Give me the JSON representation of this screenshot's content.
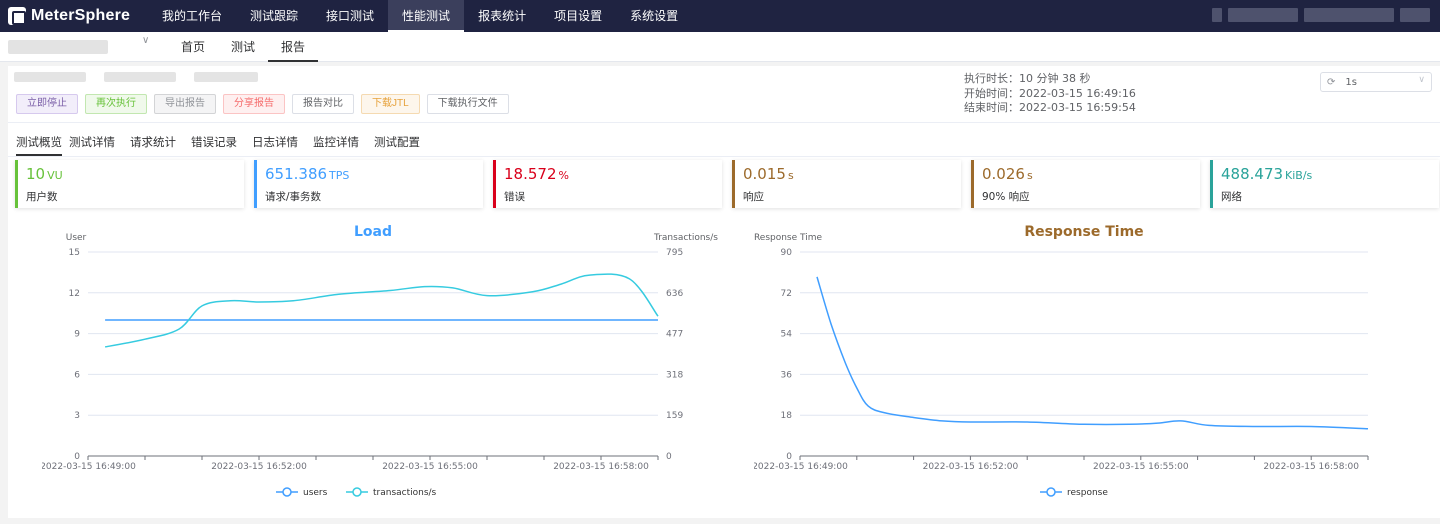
{
  "app": {
    "name": "MeterSphere"
  },
  "main_nav": [
    {
      "label": "我的工作台",
      "active": false
    },
    {
      "label": "测试跟踪",
      "active": false
    },
    {
      "label": "接口测试",
      "active": false
    },
    {
      "label": "性能测试",
      "active": true
    },
    {
      "label": "报表统计",
      "active": false
    },
    {
      "label": "项目设置",
      "active": false
    },
    {
      "label": "系统设置",
      "active": false
    }
  ],
  "sub_nav": [
    {
      "label": "首页",
      "active": false
    },
    {
      "label": "测试",
      "active": false
    },
    {
      "label": "报告",
      "active": true
    }
  ],
  "actions": {
    "stop": "立即停止",
    "rerun": "再次执行",
    "export": "导出报告",
    "share": "分享报告",
    "compare": "报告对比",
    "download_jtl": "下载JTL",
    "download_files": "下载执行文件"
  },
  "meta": {
    "duration_label": "执行时长：",
    "duration_value": "10 分钟 38 秒",
    "start_label": "开始时间：",
    "start_value": "2022-03-15 16:49:16",
    "end_label": "结束时间：",
    "end_value": "2022-03-15 16:59:54"
  },
  "interval": {
    "value": "1s"
  },
  "tabs": [
    {
      "label": "测试概览",
      "active": true
    },
    {
      "label": "测试详情",
      "active": false
    },
    {
      "label": "请求统计",
      "active": false
    },
    {
      "label": "错误记录",
      "active": false
    },
    {
      "label": "日志详情",
      "active": false
    },
    {
      "label": "监控详情",
      "active": false
    },
    {
      "label": "测试配置",
      "active": false
    }
  ],
  "stats": [
    {
      "value": "10",
      "unit": "VU",
      "label": "用户数",
      "color": "#67c23a"
    },
    {
      "value": "651.386",
      "unit": "TPS",
      "label": "请求/事务数",
      "color": "#409eff"
    },
    {
      "value": "18.572",
      "unit": "%",
      "label": "错误",
      "color": "#d9001b"
    },
    {
      "value": "0.015",
      "unit": "s",
      "label": "响应",
      "color": "#9c6a2b"
    },
    {
      "value": "0.026",
      "unit": "s",
      "label": "90% 响应",
      "color": "#9c6a2b"
    },
    {
      "value": "488.473",
      "unit": "KiB/s",
      "label": "网络",
      "color": "#2aa39a"
    }
  ],
  "chart_data": [
    {
      "type": "line",
      "title": "Load",
      "title_color": "#409eff",
      "ylabel_left": "User",
      "ylabel_right": "Transactions/s",
      "ylim_left": [
        0,
        15
      ],
      "yticks_left": [
        "0",
        "3",
        "6",
        "9",
        "12",
        "15"
      ],
      "ylim_right": [
        0,
        795
      ],
      "yticks_right": [
        "0",
        "159",
        "318",
        "477",
        "636",
        "795"
      ],
      "xlim_min": [
        0,
        10
      ],
      "xticks": [
        "2022-03-15 16:49:00",
        "2022-03-15 16:52:00",
        "2022-03-15 16:55:00",
        "2022-03-15 16:58:00"
      ],
      "xtick_min": [
        0,
        3,
        6,
        9
      ],
      "grid": true,
      "legend": "bottom",
      "series": [
        {
          "name": "users",
          "axis": "left",
          "color": "#409eff",
          "x": [
            0.3,
            10.0
          ],
          "y": [
            10,
            10
          ]
        },
        {
          "name": "transactions/s",
          "axis": "right",
          "color": "#36cbe0",
          "x": [
            0.3,
            1.0,
            1.6,
            2.0,
            2.5,
            3.0,
            3.6,
            4.4,
            5.3,
            5.9,
            6.4,
            7.0,
            7.8,
            8.3,
            8.8,
            9.5,
            10.0
          ],
          "y": [
            425,
            455,
            495,
            585,
            605,
            600,
            605,
            630,
            645,
            660,
            655,
            625,
            640,
            670,
            705,
            690,
            545
          ]
        }
      ]
    },
    {
      "type": "line",
      "title": "Response Time",
      "title_color": "#9c6a2b",
      "ylabel": "Response Time",
      "ylim": [
        0,
        90
      ],
      "yticks": [
        "0",
        "18",
        "36",
        "54",
        "72",
        "90"
      ],
      "xlim_min": [
        0,
        10
      ],
      "xticks": [
        "2022-03-15 16:49:00",
        "2022-03-15 16:52:00",
        "2022-03-15 16:55:00",
        "2022-03-15 16:58:00"
      ],
      "xtick_min": [
        0,
        3,
        6,
        9
      ],
      "grid": true,
      "legend": "bottom",
      "series": [
        {
          "name": "response",
          "color": "#409eff",
          "x": [
            0.3,
            0.55,
            0.8,
            1.0,
            1.2,
            1.5,
            2.0,
            2.5,
            3.0,
            4.0,
            5.0,
            5.8,
            6.3,
            6.7,
            7.2,
            8.0,
            9.0,
            10.0
          ],
          "y": [
            79,
            58,
            41,
            30,
            22,
            19,
            17,
            15.5,
            15,
            15,
            14,
            14,
            14.5,
            15.5,
            13.5,
            13,
            13,
            12
          ]
        }
      ]
    }
  ]
}
